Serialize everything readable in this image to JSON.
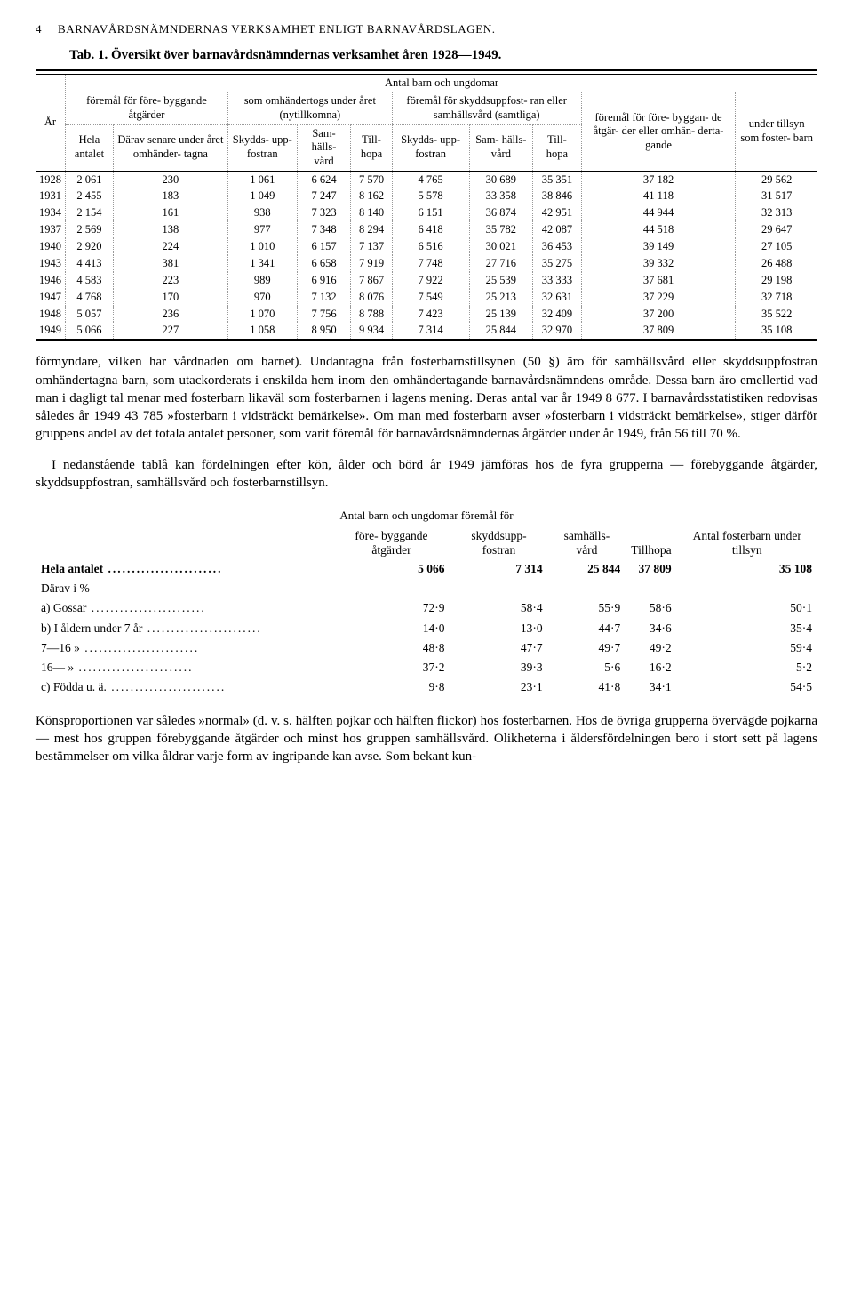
{
  "page_number": "4",
  "running_head": "BARNAVÅRDSNÄMNDERNAS VERKSAMHET ENLIGT BARNAVÅRDSLAGEN.",
  "tab_number": "Tab. 1.",
  "tab_caption": "Översikt över barnavårdsnämndernas verksamhet åren 1928—1949.",
  "table1": {
    "super_header": "Antal barn och ungdomar",
    "col_year": "År",
    "grp_forebygg": "föremål för före-\nbyggande åtgärder",
    "grp_nytillkomna": "som omhändertogs\nunder året\n(nytillkomna)",
    "grp_samtliga": "föremål för skyddsuppfost-\nran eller samhällsvård\n(samtliga)",
    "col_hela": "Hela\nantalet",
    "col_derav": "Därav\nsenare\nunder året\nomhänder-\ntagna",
    "col_skydds": "Skydds-\nupp-\nfostran",
    "col_samhalls": "Sam-\nhälls-\nvård",
    "col_tillhopa": "Till-\nhopa",
    "col_fgbp": "föremål\nför före-\nbyggan-\nde åtgär-\nder eller\nomhän-\nderta-\ngande",
    "col_foster": "under\ntillsyn\nsom\nfoster-\nbarn",
    "rows": [
      {
        "y": "1928",
        "a": "2 061",
        "b": "230",
        "c": "1 061",
        "d": "6 624",
        "e": "7 570",
        "f": "4 765",
        "g": "30 689",
        "h": "35 351",
        "i": "37 182",
        "j": "29 562"
      },
      {
        "y": "1931",
        "a": "2 455",
        "b": "183",
        "c": "1 049",
        "d": "7 247",
        "e": "8 162",
        "f": "5 578",
        "g": "33 358",
        "h": "38 846",
        "i": "41 118",
        "j": "31 517"
      },
      {
        "y": "1934",
        "a": "2 154",
        "b": "161",
        "c": "938",
        "d": "7 323",
        "e": "8 140",
        "f": "6 151",
        "g": "36 874",
        "h": "42 951",
        "i": "44 944",
        "j": "32 313"
      },
      {
        "y": "1937",
        "a": "2 569",
        "b": "138",
        "c": "977",
        "d": "7 348",
        "e": "8 294",
        "f": "6 418",
        "g": "35 782",
        "h": "42 087",
        "i": "44 518",
        "j": "29 647"
      },
      {
        "y": "1940",
        "a": "2 920",
        "b": "224",
        "c": "1 010",
        "d": "6 157",
        "e": "7 137",
        "f": "6 516",
        "g": "30 021",
        "h": "36 453",
        "i": "39 149",
        "j": "27 105"
      },
      {
        "y": "1943",
        "a": "4 413",
        "b": "381",
        "c": "1 341",
        "d": "6 658",
        "e": "7 919",
        "f": "7 748",
        "g": "27 716",
        "h": "35 275",
        "i": "39 332",
        "j": "26 488"
      },
      {
        "y": "1946",
        "a": "4 583",
        "b": "223",
        "c": "989",
        "d": "6 916",
        "e": "7 867",
        "f": "7 922",
        "g": "25 539",
        "h": "33 333",
        "i": "37 681",
        "j": "29 198"
      },
      {
        "y": "1947",
        "a": "4 768",
        "b": "170",
        "c": "970",
        "d": "7 132",
        "e": "8 076",
        "f": "7 549",
        "g": "25 213",
        "h": "32 631",
        "i": "37 229",
        "j": "32 718"
      },
      {
        "y": "1948",
        "a": "5 057",
        "b": "236",
        "c": "1 070",
        "d": "7 756",
        "e": "8 788",
        "f": "7 423",
        "g": "25 139",
        "h": "32 409",
        "i": "37 200",
        "j": "35 522"
      },
      {
        "y": "1949",
        "a": "5 066",
        "b": "227",
        "c": "1 058",
        "d": "8 950",
        "e": "9 934",
        "f": "7 314",
        "g": "25 844",
        "h": "32 970",
        "i": "37 809",
        "j": "35 108"
      }
    ]
  },
  "para1": "förmyndare, vilken har vårdnaden om barnet). Undantagna från fosterbarnstillsynen (50 §) äro för samhällsvård eller skyddsuppfostran omhändertagna barn, som utackorderats i enskilda hem inom den omhändertagande barnavårdsnämndens område. Dessa barn äro emellertid vad man i dagligt tal menar med fosterbarn likaväl som fosterbarnen i lagens mening. Deras antal var år 1949 8 677. I barnavårdsstatistiken redovisas således år 1949 43 785 »fosterbarn i vidsträckt bemärkelse». Om man med fosterbarn avser »fosterbarn i vidsträckt bemärkelse», stiger därför gruppens andel av det totala antalet personer, som varit föremål för barnavårdsnämndernas åtgärder under år 1949, från 56 till 70 %.",
  "para2": "I nedanstående tablå kan fördelningen efter kön, ålder och börd år 1949 jämföras hos de fyra grupperna — förebyggande åtgärder, skyddsuppfostran, samhällsvård och fosterbarnstillsyn.",
  "breakdown": {
    "super": "Antal barn och ungdomar föremål för",
    "cols": {
      "c1": "före-\nbyggande\nåtgärder",
      "c2": "skyddsupp-\nfostran",
      "c3": "samhälls-\nvård",
      "c4": "Tillhopa",
      "c5": "Antal\nfosterbarn\nunder tillsyn"
    },
    "rows": [
      {
        "label": "Hela antalet",
        "v": [
          "5 066",
          "7 314",
          "25 844",
          "37 809",
          "35 108"
        ],
        "bold": true
      },
      {
        "label": "Därav i %",
        "v": [
          "",
          "",
          "",
          "",
          ""
        ],
        "sub": true
      },
      {
        "label": "a) Gossar",
        "v": [
          "72·9",
          "58·4",
          "55·9",
          "58·6",
          "50·1"
        ],
        "indent": 1
      },
      {
        "label": "b) I åldern under 7 år",
        "v": [
          "14·0",
          "13·0",
          "44·7",
          "34·6",
          "35·4"
        ],
        "indent": 1
      },
      {
        "label": "7—16  »",
        "v": [
          "48·8",
          "47·7",
          "49·7",
          "49·2",
          "59·4"
        ],
        "indent": 2
      },
      {
        "label": "16—   »",
        "v": [
          "37·2",
          "39·3",
          "5·6",
          "16·2",
          "5·2"
        ],
        "indent": 2
      },
      {
        "label": "c) Födda u. ä.",
        "v": [
          "9·8",
          "23·1",
          "41·8",
          "34·1",
          "54·5"
        ],
        "indent": 1
      }
    ]
  },
  "para3": "Könsproportionen var således »normal» (d. v. s. hälften pojkar och hälften flickor) hos fosterbarnen. Hos de övriga grupperna övervägde pojkarna — mest hos gruppen förebyggande åtgärder och minst hos gruppen samhällsvård. Olikheterna i åldersfördelningen bero i stort sett på lagens bestämmelser om vilka åldrar varje form av ingripande kan avse. Som bekant kun-"
}
